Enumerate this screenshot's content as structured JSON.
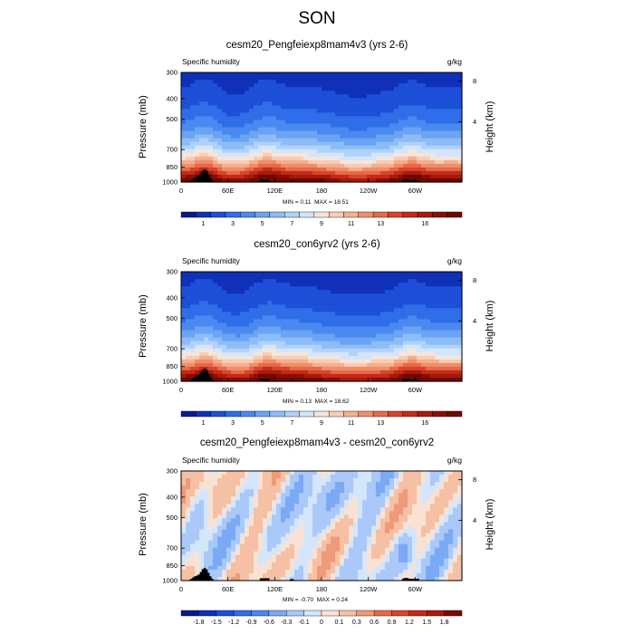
{
  "figure": {
    "title": "SON"
  },
  "chart_data": [
    {
      "type": "heatmap",
      "title": "cesm20_Pengfeiexp8mam4v3 (yrs 2-6)",
      "left_label": "Specific humidity",
      "units": "g/kg",
      "ylabel": "Pressure (mb)",
      "y2label": "Height (km)",
      "x_ticks": [
        "0",
        "60E",
        "120E",
        "180",
        "120W",
        "60W"
      ],
      "y_ticks": [
        "300",
        "400",
        "500",
        "700",
        "850",
        "1000"
      ],
      "y2_ticks": [
        "8",
        "4"
      ],
      "min_label": "MIN =",
      "min": "0.11",
      "max_label": "MAX =",
      "max": "18.51",
      "colorbar_labels": [
        "1",
        "3",
        "5",
        "7",
        "9",
        "11",
        "13",
        "16"
      ],
      "colorbar_levels": 19,
      "field": "humidity",
      "variant": 0
    },
    {
      "type": "heatmap",
      "title": "cesm20_con6yrv2 (yrs 2-6)",
      "left_label": "Specific humidity",
      "units": "g/kg",
      "ylabel": "Pressure (mb)",
      "y2label": "Height (km)",
      "x_ticks": [
        "0",
        "60E",
        "120E",
        "180",
        "120W",
        "60W"
      ],
      "y_ticks": [
        "300",
        "400",
        "500",
        "700",
        "850",
        "1000"
      ],
      "y2_ticks": [
        "8",
        "4"
      ],
      "min_label": "MIN =",
      "min": "0.13",
      "max_label": "MAX =",
      "max": "18.62",
      "colorbar_labels": [
        "1",
        "3",
        "5",
        "7",
        "9",
        "11",
        "13",
        "16"
      ],
      "colorbar_levels": 19,
      "field": "humidity",
      "variant": 1
    },
    {
      "type": "heatmap",
      "title": "cesm20_Pengfeiexp8mam4v3 - cesm20_con6yrv2",
      "left_label": "Specific humidity",
      "units": "g/kg",
      "ylabel": "Pressure (mb)",
      "y2label": "Height (km)",
      "x_ticks": [
        "0",
        "60E",
        "120E",
        "180",
        "120W",
        "60W"
      ],
      "y_ticks": [
        "300",
        "400",
        "500",
        "700",
        "850",
        "1000"
      ],
      "y2_ticks": [
        "8",
        "4"
      ],
      "min_label": "MIN =",
      "min": "-0.70",
      "max_label": "MAX =",
      "max": "0.24",
      "colorbar_labels": [
        "-1.8",
        "-1.5",
        "-1.2",
        "-0.9",
        "-0.6",
        "-0.3",
        "-0.1",
        "0",
        "0.1",
        "0.3",
        "0.6",
        "0.9",
        "1.2",
        "1.5",
        "1.8"
      ],
      "colorbar_levels": 16,
      "field": "difference",
      "variant": 2
    }
  ],
  "colors": {
    "ramp": [
      "#0a1a8c",
      "#1030b8",
      "#1d4fd8",
      "#2f6ee8",
      "#4a8af0",
      "#6aa4f4",
      "#8dbcf7",
      "#b0d2f9",
      "#d2e5fb",
      "#f5e6dc",
      "#f8cdb6",
      "#f5af90",
      "#ef8e6a",
      "#e66a47",
      "#d8452a",
      "#c42a18",
      "#a81a0c",
      "#8a0e05",
      "#6e0802"
    ],
    "diff_ramp": [
      "#0a1a8c",
      "#1030b8",
      "#1d4fd8",
      "#2f6ee8",
      "#4a8af0",
      "#7aaaf4",
      "#aac8f8",
      "#d4e6fb",
      "#f9e2d4",
      "#f5c0a4",
      "#ef9a78",
      "#e66a47",
      "#d8452a",
      "#c42a18",
      "#a81a0c",
      "#7a0a04"
    ],
    "terrain": "#000000"
  }
}
